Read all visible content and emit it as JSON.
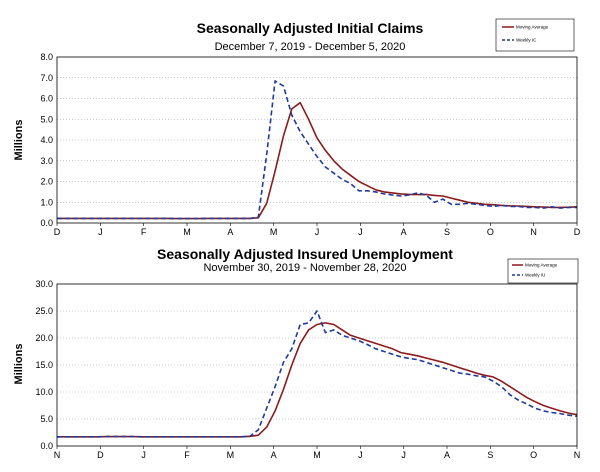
{
  "chart_data": [
    {
      "type": "line",
      "title": "Seasonally Adjusted Initial Claims",
      "subtitle": "December 7, 2019 - December 5, 2020",
      "ylabel": "Millions",
      "xlabel": "",
      "ylim": [
        0,
        8
      ],
      "yticks": [
        "0.0",
        "1.0",
        "2.0",
        "3.0",
        "4.0",
        "5.0",
        "6.0",
        "7.0",
        "8.0"
      ],
      "xticks": [
        "D",
        "J",
        "F",
        "M",
        "A",
        "M",
        "J",
        "J",
        "A",
        "S",
        "O",
        "N",
        "D"
      ],
      "grid": "horizontal-dotted",
      "legend": "top-right",
      "colors": {
        "moving_average": "#8b1a1a",
        "weekly": "#1f3a9e"
      },
      "series": [
        {
          "name": "Moving Average",
          "style": "solid",
          "values": [
            0.22,
            0.22,
            0.22,
            0.22,
            0.22,
            0.22,
            0.22,
            0.22,
            0.22,
            0.22,
            0.22,
            0.22,
            0.22,
            0.22,
            0.21,
            0.21,
            0.21,
            0.21,
            0.22,
            0.22,
            0.22,
            0.22,
            0.22,
            0.22,
            0.25,
            0.95,
            2.5,
            4.2,
            5.5,
            5.8,
            5.0,
            4.1,
            3.5,
            3.0,
            2.6,
            2.3,
            2.0,
            1.8,
            1.6,
            1.5,
            1.45,
            1.4,
            1.38,
            1.37,
            1.38,
            1.33,
            1.3,
            1.2,
            1.1,
            1.0,
            0.95,
            0.9,
            0.88,
            0.85,
            0.83,
            0.82,
            0.8,
            0.78,
            0.77,
            0.75,
            0.75,
            0.76,
            0.78
          ]
        },
        {
          "name": "Weekly IC",
          "style": "dashed",
          "values": [
            0.22,
            0.22,
            0.22,
            0.22,
            0.22,
            0.22,
            0.22,
            0.22,
            0.22,
            0.22,
            0.22,
            0.22,
            0.22,
            0.22,
            0.21,
            0.21,
            0.21,
            0.21,
            0.22,
            0.22,
            0.22,
            0.22,
            0.22,
            0.22,
            0.28,
            3.3,
            6.85,
            6.6,
            5.2,
            4.4,
            3.8,
            3.2,
            2.7,
            2.4,
            2.1,
            1.9,
            1.55,
            1.55,
            1.5,
            1.4,
            1.35,
            1.3,
            1.35,
            1.45,
            1.35,
            1.0,
            1.15,
            0.9,
            0.9,
            0.95,
            0.9,
            0.85,
            0.8,
            0.85,
            0.8,
            0.8,
            0.75,
            0.75,
            0.72,
            0.78,
            0.72,
            0.75,
            0.75
          ]
        }
      ]
    },
    {
      "type": "line",
      "title": "Seasonally Adjusted Insured Unemployment",
      "subtitle": "November 30, 2019 - November 28, 2020",
      "ylabel": "Millions",
      "xlabel": "",
      "ylim": [
        0,
        30
      ],
      "yticks": [
        "0.0",
        "5.0",
        "10.0",
        "15.0",
        "20.0",
        "25.0",
        "30.0"
      ],
      "xticks": [
        "N",
        "D",
        "J",
        "F",
        "M",
        "A",
        "M",
        "J",
        "J",
        "A",
        "S",
        "O",
        "N"
      ],
      "grid": "horizontal-dotted",
      "legend": "top-right",
      "colors": {
        "moving_average": "#8b1a1a",
        "weekly": "#1f3a9e"
      },
      "series": [
        {
          "name": "Moving Average",
          "style": "solid",
          "values": [
            1.7,
            1.7,
            1.7,
            1.7,
            1.7,
            1.7,
            1.75,
            1.75,
            1.75,
            1.75,
            1.7,
            1.7,
            1.7,
            1.7,
            1.7,
            1.7,
            1.7,
            1.7,
            1.7,
            1.7,
            1.7,
            1.7,
            1.7,
            1.8,
            2.0,
            3.5,
            6.5,
            10.5,
            15.0,
            19.0,
            21.5,
            22.5,
            22.8,
            22.5,
            21.5,
            20.5,
            20.0,
            19.5,
            19.0,
            18.5,
            18.0,
            17.3,
            17.0,
            16.7,
            16.3,
            15.9,
            15.5,
            15.0,
            14.5,
            14.0,
            13.5,
            13.1,
            12.8,
            12.0,
            11.0,
            10.0,
            9.0,
            8.2,
            7.5,
            7.0,
            6.5,
            6.1,
            5.8
          ]
        },
        {
          "name": "Weekly IU",
          "style": "dashed",
          "values": [
            1.7,
            1.7,
            1.7,
            1.7,
            1.7,
            1.7,
            1.75,
            1.75,
            1.75,
            1.75,
            1.7,
            1.7,
            1.7,
            1.7,
            1.7,
            1.7,
            1.7,
            1.7,
            1.7,
            1.7,
            1.7,
            1.7,
            1.7,
            1.8,
            3.0,
            7.0,
            11.0,
            15.5,
            18.0,
            22.5,
            22.8,
            25.0,
            21.0,
            21.5,
            20.5,
            20.0,
            19.5,
            18.8,
            18.0,
            17.5,
            17.0,
            16.5,
            16.2,
            16.0,
            15.5,
            15.0,
            14.5,
            14.0,
            13.5,
            13.3,
            13.0,
            12.8,
            12.0,
            11.0,
            9.5,
            8.5,
            7.8,
            7.0,
            6.5,
            6.2,
            6.0,
            5.7,
            5.5
          ]
        }
      ]
    }
  ]
}
